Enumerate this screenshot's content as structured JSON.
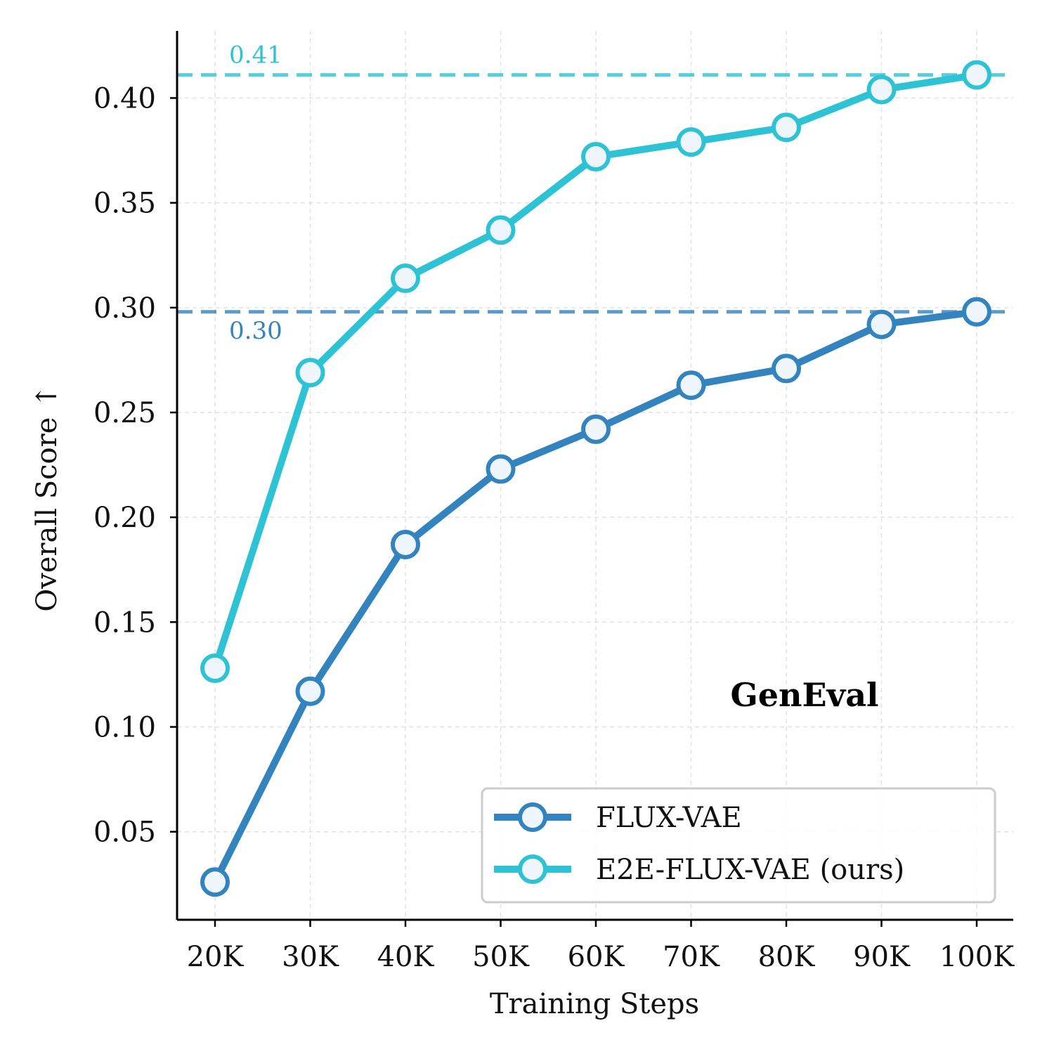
{
  "chart_data": {
    "type": "line",
    "title": "GenEval",
    "xlabel": "Training Steps",
    "ylabel": "Overall Score ↑",
    "categories": [
      "20K",
      "30K",
      "40K",
      "50K",
      "60K",
      "70K",
      "80K",
      "90K",
      "100K"
    ],
    "ylim": [
      0.008,
      0.432
    ],
    "yticks": [
      0.05,
      0.1,
      0.15,
      0.2,
      0.25,
      0.3,
      0.35,
      0.4
    ],
    "ytick_labels": [
      "0.05",
      "0.10",
      "0.15",
      "0.20",
      "0.25",
      "0.30",
      "0.35",
      "0.40"
    ],
    "grid": true,
    "legend_position": "lower-right",
    "series": [
      {
        "name": "FLUX-VAE",
        "color": "#3383bf",
        "values": [
          0.026,
          0.117,
          0.187,
          0.223,
          0.242,
          0.263,
          0.271,
          0.292,
          0.298
        ]
      },
      {
        "name": "E2E-FLUX-VAE (ours)",
        "color": "#2ec3d4",
        "values": [
          0.128,
          0.269,
          0.314,
          0.337,
          0.372,
          0.379,
          0.386,
          0.404,
          0.411
        ]
      }
    ],
    "reference_lines": [
      {
        "value": 0.411,
        "label": "0.41",
        "color": "#2ec3d4"
      },
      {
        "value": 0.298,
        "label": "0.30",
        "color": "#3383bf"
      }
    ]
  }
}
